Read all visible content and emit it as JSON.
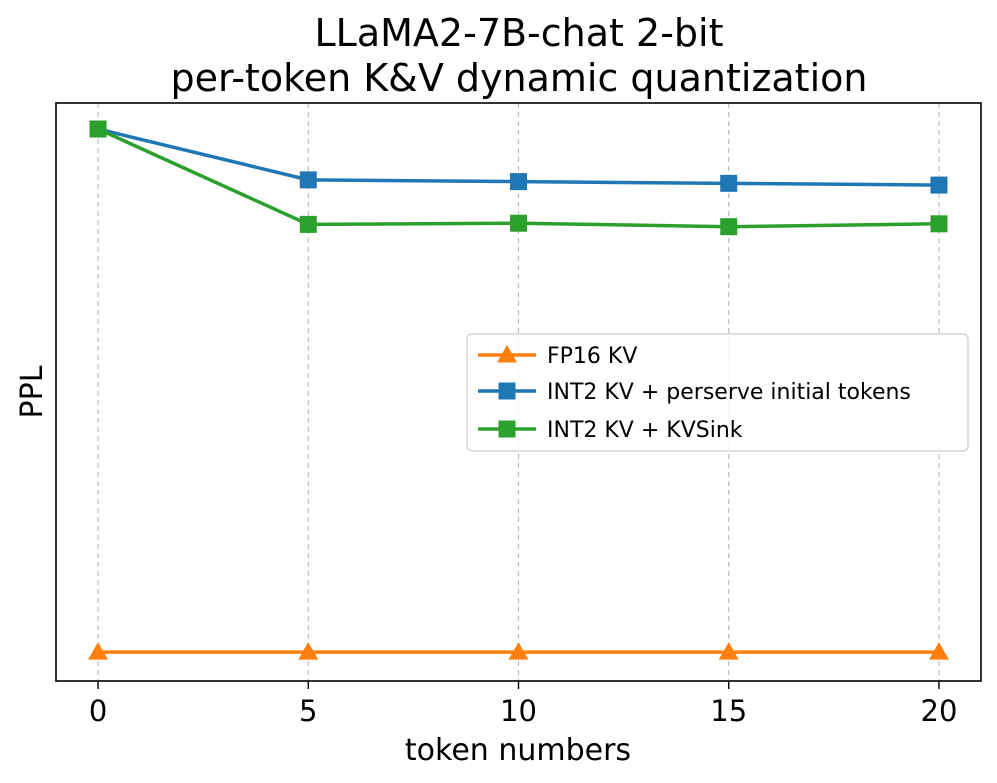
{
  "chart_data": {
    "type": "line",
    "title_line1": "LLaMA2-7B-chat 2-bit",
    "title_line2": "per-token K&V dynamic quantization",
    "xlabel": "token numbers",
    "ylabel": "PPL",
    "x": [
      0,
      5,
      10,
      15,
      20
    ],
    "xticks": [
      0,
      5,
      10,
      15,
      20
    ],
    "xlim": [
      -1,
      21
    ],
    "ylim": [
      0,
      100
    ],
    "y_ticks_shown": false,
    "grid": "vertical dashed",
    "legend_position": "center-right",
    "series": [
      {
        "name": "FP16 KV",
        "color": "#ff7f0e",
        "marker": "triangle-up",
        "values": [
          5,
          5,
          5,
          5,
          5
        ]
      },
      {
        "name": "INT2 KV + perserve initial tokens",
        "color": "#1f77b4",
        "marker": "square",
        "values": [
          95.5,
          86.7,
          86.4,
          86.1,
          85.8
        ]
      },
      {
        "name": "INT2 KV + KVSink",
        "color": "#2ca02c",
        "marker": "square",
        "values": [
          95.5,
          79.0,
          79.2,
          78.6,
          79.1
        ]
      }
    ]
  }
}
